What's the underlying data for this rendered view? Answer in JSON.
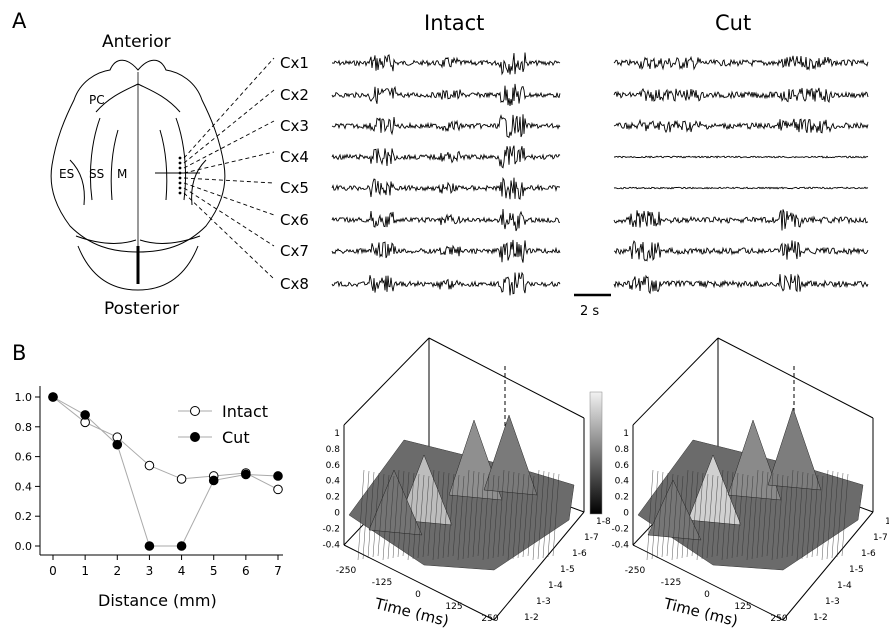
{
  "panel_a": {
    "letter": "A",
    "brain": {
      "anterior": "Anterior",
      "posterior": "Posterior",
      "regions": [
        "PC",
        "ES",
        "SS",
        "M"
      ]
    },
    "columns": [
      "Intact",
      "Cut"
    ],
    "channels": [
      "Cx1",
      "Cx2",
      "Cx3",
      "Cx4",
      "Cx5",
      "Cx6",
      "Cx7",
      "Cx8"
    ],
    "scale_bar": "2 s"
  },
  "panel_b": {
    "letter": "B",
    "surface_axes": {
      "xlabel": "Time (ms)",
      "z_ticks": [
        "1",
        "0.8",
        "0.6",
        "0.4",
        "0.2",
        "0",
        "-0.2",
        "-0.4"
      ],
      "time_ticks": [
        "-250",
        "-125",
        "0",
        "125",
        "250"
      ],
      "pair_ticks": [
        "1-8",
        "1-7",
        "1-6",
        "1-5",
        "1-4",
        "1-3",
        "1-2"
      ]
    }
  },
  "chart_data": {
    "type": "line",
    "xlabel": "Distance (mm)",
    "ylabel": "",
    "x": [
      0,
      1,
      2,
      3,
      4,
      5,
      6,
      7
    ],
    "xlim": [
      0,
      7
    ],
    "ylim": [
      0.0,
      1.0
    ],
    "x_ticks": [
      "0",
      "1",
      "2",
      "3",
      "4",
      "5",
      "6",
      "7"
    ],
    "y_ticks": [
      "0.0",
      "0.2",
      "0.4",
      "0.6",
      "0.8",
      "1.0"
    ],
    "series": [
      {
        "name": "Intact",
        "marker": "open-circle",
        "values": [
          1.0,
          0.83,
          0.73,
          0.54,
          0.45,
          0.47,
          0.49,
          0.38
        ]
      },
      {
        "name": "Cut",
        "marker": "filled-circle",
        "values": [
          1.0,
          0.88,
          0.68,
          0.0,
          0.0,
          0.44,
          0.48,
          0.47
        ]
      }
    ],
    "legend": "top-right"
  }
}
